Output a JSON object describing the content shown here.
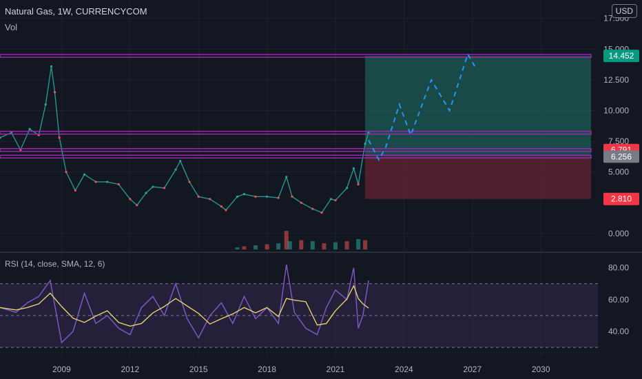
{
  "header": {
    "title": "Natural Gas, 1W, CURRENCYCOM",
    "volume_label": "Vol",
    "currency_button": "USD"
  },
  "rsi_label": "RSI (14, close, SMA, 12, 6)",
  "colors": {
    "background": "#131722",
    "grid": "#1e222d",
    "candle_up": "#26a69a",
    "candle_down": "#ef5350",
    "level_line": "#9c27b0",
    "projection": "#2196f3",
    "target_zone": "#1e5c56",
    "stop_zone": "#5a2330",
    "rsi_line": "#7e57c2",
    "rsi_ma": "#e5d36a",
    "rsi_band": "#2a2340"
  },
  "price_tags": [
    {
      "value": "14.452",
      "color": "#089981"
    },
    {
      "value": "6.791",
      "color": "#f23645"
    },
    {
      "value": "6.256",
      "color": "#787b86"
    },
    {
      "value": "2.810",
      "color": "#f23645"
    }
  ],
  "chart_data": {
    "type": "line",
    "title": "Natural Gas, 1W, CURRENCYCOM",
    "price_axis": {
      "ticks": [
        "17.500",
        "15.000",
        "12.500",
        "10.000",
        "7.500",
        "5.000",
        "0.000"
      ],
      "range": [
        -1.3,
        19
      ]
    },
    "rsi_axis": {
      "ticks": [
        "80.00",
        "60.00",
        "40.00"
      ],
      "range": [
        24,
        88
      ],
      "bands": [
        30,
        50,
        70
      ]
    },
    "x_axis": {
      "ticks": [
        "2009",
        "2012",
        "2015",
        "2018",
        "2021",
        "2024",
        "2027",
        "2030"
      ],
      "range": [
        2006.3,
        2032.5
      ]
    },
    "price_series": {
      "name": "Natural Gas",
      "x": [
        2006.3,
        2006.8,
        2007.2,
        2007.6,
        2008.0,
        2008.3,
        2008.55,
        2008.7,
        2008.9,
        2009.2,
        2009.6,
        2010.0,
        2010.5,
        2011.0,
        2011.5,
        2012.0,
        2012.3,
        2012.7,
        2013.0,
        2013.5,
        2014.0,
        2014.2,
        2014.6,
        2015.0,
        2015.5,
        2016.0,
        2016.2,
        2016.7,
        2017.0,
        2017.5,
        2018.0,
        2018.5,
        2018.85,
        2019.1,
        2019.5,
        2020.0,
        2020.4,
        2020.8,
        2021.0,
        2021.5,
        2021.8,
        2022.0,
        2022.3,
        2022.45
      ],
      "y": [
        7.8,
        8.2,
        6.8,
        8.5,
        8.0,
        10.5,
        13.6,
        11.5,
        7.8,
        5.0,
        3.5,
        4.8,
        4.2,
        4.2,
        4.0,
        2.8,
        2.3,
        3.3,
        3.8,
        3.7,
        5.2,
        5.9,
        4.2,
        3.0,
        2.8,
        2.2,
        1.9,
        3.0,
        3.2,
        3.0,
        3.0,
        2.9,
        4.6,
        3.0,
        2.5,
        2.0,
        1.7,
        2.8,
        2.7,
        3.7,
        5.3,
        4.0,
        7.3,
        8.2
      ]
    },
    "volume_series": {
      "name": "Vol",
      "x": [
        2016.7,
        2017.0,
        2017.5,
        2018.0,
        2018.5,
        2018.85,
        2019.0,
        2019.5,
        2020.0,
        2020.5,
        2021.0,
        2021.5,
        2022.0,
        2022.3
      ],
      "y": [
        1,
        1.5,
        2,
        2.5,
        3,
        9,
        4,
        4.5,
        4,
        3,
        3.5,
        4,
        5,
        4.5
      ]
    },
    "rsi_series": {
      "name": "RSI",
      "x": [
        2006.3,
        2007.0,
        2007.5,
        2008.0,
        2008.5,
        2009.0,
        2009.5,
        2010.0,
        2010.5,
        2011.0,
        2011.5,
        2012.0,
        2012.5,
        2013.0,
        2013.5,
        2014.0,
        2014.5,
        2015.0,
        2015.5,
        2016.0,
        2016.5,
        2017.0,
        2017.5,
        2018.0,
        2018.5,
        2018.85,
        2019.2,
        2019.7,
        2020.2,
        2020.6,
        2021.0,
        2021.5,
        2021.8,
        2022.0,
        2022.2,
        2022.45
      ],
      "y": [
        55,
        52,
        58,
        62,
        72,
        33,
        40,
        64,
        45,
        50,
        42,
        38,
        55,
        62,
        50,
        70,
        48,
        36,
        50,
        58,
        45,
        62,
        48,
        55,
        45,
        82,
        52,
        42,
        38,
        55,
        66,
        60,
        80,
        42,
        50,
        72
      ]
    },
    "levels": [
      14.452,
      8.2,
      6.791,
      6.256
    ],
    "projection": {
      "x": [
        2022.45,
        2022.9,
        2023.2,
        2023.8,
        2024.3,
        2025.2,
        2026.0,
        2026.8,
        2027.1
      ],
      "y": [
        7.6,
        6.0,
        7.0,
        10.5,
        8.0,
        12.5,
        10.0,
        14.6,
        13.6
      ]
    },
    "target_zone": [
      6.256,
      14.452
    ],
    "stop_zone": [
      2.81,
      6.256
    ]
  }
}
